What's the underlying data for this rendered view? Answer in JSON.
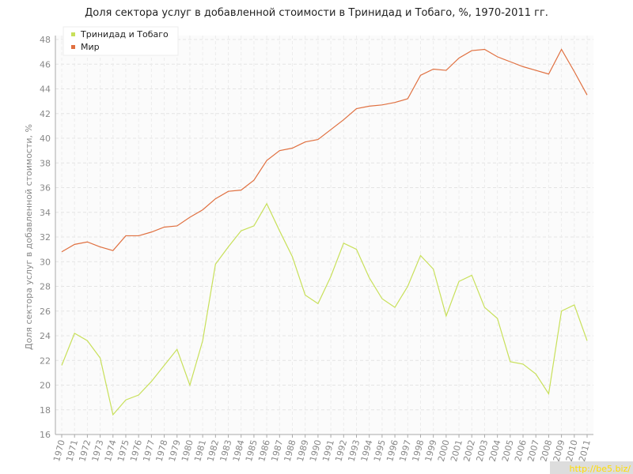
{
  "chart_data": {
    "type": "line",
    "title": "Доля сектора услуг в добавленной стоимости в Тринидад и Тобаго, %, 1970-2011 гг.",
    "y_label": "Доля сектора услуг в добавленной стоимости, %",
    "watermark": "http://be5.biz/",
    "categories": [
      "1970",
      "1971",
      "1972",
      "1973",
      "1974",
      "1975",
      "1976",
      "1977",
      "1978",
      "1979",
      "1980",
      "1981",
      "1982",
      "1983",
      "1984",
      "1985",
      "1986",
      "1987",
      "1988",
      "1989",
      "1990",
      "1991",
      "1992",
      "1993",
      "1994",
      "1995",
      "1996",
      "1997",
      "1998",
      "1999",
      "2000",
      "2001",
      "2002",
      "2003",
      "2004",
      "2005",
      "2006",
      "2007",
      "2008",
      "2009",
      "2010",
      "2011"
    ],
    "series": [
      {
        "name": "Тринидад и Тобаго",
        "color": "#c8e05a",
        "values": [
          21.6,
          24.2,
          23.6,
          22.2,
          17.6,
          18.8,
          19.2,
          20.3,
          21.6,
          22.9,
          20.0,
          23.6,
          29.8,
          31.2,
          32.5,
          32.9,
          34.7,
          32.5,
          30.4,
          27.3,
          26.6,
          28.8,
          31.5,
          31.0,
          28.7,
          27.0,
          26.3,
          28.0,
          30.5,
          29.4,
          25.6,
          28.4,
          28.9,
          26.3,
          25.4,
          21.9,
          21.7,
          20.9,
          19.3,
          26.0,
          26.5,
          23.6
        ]
      },
      {
        "name": "Мир",
        "color": "#e07040",
        "values": [
          30.8,
          31.4,
          31.6,
          31.2,
          30.9,
          32.1,
          32.1,
          32.4,
          32.8,
          32.9,
          33.6,
          34.2,
          35.1,
          35.7,
          35.8,
          36.6,
          38.2,
          39.0,
          39.2,
          39.7,
          39.9,
          40.7,
          41.5,
          42.4,
          42.6,
          42.7,
          42.9,
          43.2,
          45.1,
          45.6,
          45.5,
          46.5,
          47.1,
          47.2,
          46.6,
          46.2,
          45.8,
          45.5,
          45.2,
          47.2,
          45.4,
          43.5
        ]
      }
    ],
    "ylim": [
      16,
      48
    ],
    "yticks": [
      16,
      18,
      20,
      22,
      24,
      26,
      28,
      30,
      32,
      34,
      36,
      38,
      40,
      42,
      44,
      46,
      48
    ],
    "grid": true,
    "legend": "top-left"
  }
}
